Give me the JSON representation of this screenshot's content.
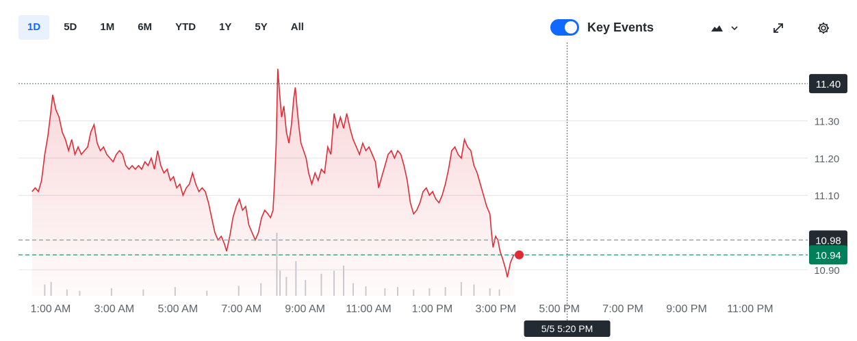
{
  "toolbar": {
    "ranges": [
      "1D",
      "5D",
      "1M",
      "6M",
      "YTD",
      "1Y",
      "5Y",
      "All"
    ],
    "active_range": "1D",
    "key_events_label": "Key Events",
    "key_events_enabled": true,
    "icons": [
      "mountain-chart-icon",
      "chevron-down-icon",
      "expand-icon",
      "gear-icon"
    ]
  },
  "colors": {
    "line": "#e02a35",
    "accent": "#0f69ff",
    "last_price": "#00805a",
    "previous_close": "#232a31",
    "badge_dark": "#232a31"
  },
  "chart_data": {
    "type": "area",
    "x_axis_ticks": [
      "1:00 AM",
      "3:00 AM",
      "5:00 AM",
      "7:00 AM",
      "9:00 AM",
      "11:00 AM",
      "1:00 PM",
      "3:00 PM",
      "5:00 PM",
      "7:00 PM",
      "9:00 PM",
      "11:00 PM"
    ],
    "y_axis_ticks": [
      11.3,
      11.2,
      11.1,
      10.9
    ],
    "ylim": [
      10.83,
      11.45
    ],
    "xlim_hours": [
      0.5,
      24.0
    ],
    "grid": true,
    "badges": {
      "high": "11.40",
      "previous_close": "10.98",
      "last": "10.94",
      "crosshair_time": "5/5 5:20 PM"
    },
    "crosshair_hour": 17.33,
    "series": [
      {
        "points": [
          [
            0.5,
            11.11
          ],
          [
            0.6,
            11.12
          ],
          [
            0.7,
            11.11
          ],
          [
            0.8,
            11.14
          ],
          [
            0.9,
            11.21
          ],
          [
            1.0,
            11.26
          ],
          [
            1.1,
            11.33
          ],
          [
            1.15,
            11.37
          ],
          [
            1.25,
            11.33
          ],
          [
            1.35,
            11.31
          ],
          [
            1.45,
            11.27
          ],
          [
            1.55,
            11.25
          ],
          [
            1.65,
            11.22
          ],
          [
            1.75,
            11.25
          ],
          [
            1.85,
            11.21
          ],
          [
            1.95,
            11.23
          ],
          [
            2.05,
            11.21
          ],
          [
            2.15,
            11.22
          ],
          [
            2.25,
            11.23
          ],
          [
            2.35,
            11.27
          ],
          [
            2.45,
            11.29
          ],
          [
            2.55,
            11.24
          ],
          [
            2.65,
            11.22
          ],
          [
            2.75,
            11.23
          ],
          [
            2.85,
            11.21
          ],
          [
            2.95,
            11.2
          ],
          [
            3.05,
            11.19
          ],
          [
            3.15,
            11.21
          ],
          [
            3.25,
            11.22
          ],
          [
            3.35,
            11.21
          ],
          [
            3.45,
            11.18
          ],
          [
            3.55,
            11.17
          ],
          [
            3.65,
            11.18
          ],
          [
            3.75,
            11.17
          ],
          [
            3.85,
            11.18
          ],
          [
            3.95,
            11.17
          ],
          [
            4.05,
            11.19
          ],
          [
            4.15,
            11.18
          ],
          [
            4.25,
            11.2
          ],
          [
            4.35,
            11.17
          ],
          [
            4.45,
            11.22
          ],
          [
            4.55,
            11.18
          ],
          [
            4.65,
            11.16
          ],
          [
            4.75,
            11.17
          ],
          [
            4.85,
            11.14
          ],
          [
            4.95,
            11.15
          ],
          [
            5.05,
            11.12
          ],
          [
            5.15,
            11.13
          ],
          [
            5.25,
            11.1
          ],
          [
            5.35,
            11.12
          ],
          [
            5.45,
            11.13
          ],
          [
            5.55,
            11.16
          ],
          [
            5.65,
            11.13
          ],
          [
            5.75,
            11.11
          ],
          [
            5.85,
            11.12
          ],
          [
            5.95,
            11.11
          ],
          [
            6.05,
            11.08
          ],
          [
            6.15,
            11.04
          ],
          [
            6.25,
            11.0
          ],
          [
            6.35,
            10.98
          ],
          [
            6.45,
            10.99
          ],
          [
            6.55,
            10.97
          ],
          [
            6.62,
            10.95
          ],
          [
            6.72,
            10.99
          ],
          [
            6.82,
            11.04
          ],
          [
            6.92,
            11.07
          ],
          [
            7.02,
            11.09
          ],
          [
            7.12,
            11.06
          ],
          [
            7.22,
            11.07
          ],
          [
            7.32,
            11.02
          ],
          [
            7.42,
            11.0
          ],
          [
            7.52,
            10.98
          ],
          [
            7.62,
            11.0
          ],
          [
            7.72,
            11.04
          ],
          [
            7.82,
            11.06
          ],
          [
            7.92,
            11.05
          ],
          [
            8.0,
            11.04
          ],
          [
            8.08,
            11.06
          ],
          [
            8.13,
            11.14
          ],
          [
            8.18,
            11.24
          ],
          [
            8.23,
            11.44
          ],
          [
            8.28,
            11.38
          ],
          [
            8.35,
            11.31
          ],
          [
            8.42,
            11.34
          ],
          [
            8.5,
            11.27
          ],
          [
            8.58,
            11.24
          ],
          [
            8.66,
            11.29
          ],
          [
            8.73,
            11.36
          ],
          [
            8.78,
            11.39
          ],
          [
            8.84,
            11.33
          ],
          [
            8.9,
            11.28
          ],
          [
            8.96,
            11.24
          ],
          [
            9.04,
            11.22
          ],
          [
            9.12,
            11.2
          ],
          [
            9.2,
            11.16
          ],
          [
            9.3,
            11.13
          ],
          [
            9.4,
            11.16
          ],
          [
            9.5,
            11.14
          ],
          [
            9.6,
            11.17
          ],
          [
            9.7,
            11.16
          ],
          [
            9.8,
            11.23
          ],
          [
            9.9,
            11.21
          ],
          [
            10.0,
            11.32
          ],
          [
            10.1,
            11.28
          ],
          [
            10.2,
            11.31
          ],
          [
            10.3,
            11.28
          ],
          [
            10.4,
            11.32
          ],
          [
            10.5,
            11.28
          ],
          [
            10.6,
            11.25
          ],
          [
            10.7,
            11.23
          ],
          [
            10.8,
            11.21
          ],
          [
            10.9,
            11.24
          ],
          [
            11.0,
            11.22
          ],
          [
            11.1,
            11.23
          ],
          [
            11.2,
            11.21
          ],
          [
            11.3,
            11.19
          ],
          [
            11.4,
            11.12
          ],
          [
            11.5,
            11.15
          ],
          [
            11.6,
            11.18
          ],
          [
            11.7,
            11.21
          ],
          [
            11.8,
            11.22
          ],
          [
            11.9,
            11.2
          ],
          [
            12.0,
            11.22
          ],
          [
            12.1,
            11.21
          ],
          [
            12.2,
            11.18
          ],
          [
            12.3,
            11.14
          ],
          [
            12.4,
            11.08
          ],
          [
            12.5,
            11.05
          ],
          [
            12.6,
            11.06
          ],
          [
            12.7,
            11.08
          ],
          [
            12.8,
            11.11
          ],
          [
            12.9,
            11.12
          ],
          [
            13.0,
            11.1
          ],
          [
            13.1,
            11.11
          ],
          [
            13.2,
            11.09
          ],
          [
            13.3,
            11.08
          ],
          [
            13.4,
            11.1
          ],
          [
            13.5,
            11.13
          ],
          [
            13.6,
            11.17
          ],
          [
            13.7,
            11.22
          ],
          [
            13.8,
            11.23
          ],
          [
            13.9,
            11.21
          ],
          [
            14.0,
            11.2
          ],
          [
            14.1,
            11.25
          ],
          [
            14.2,
            11.23
          ],
          [
            14.3,
            11.22
          ],
          [
            14.4,
            11.18
          ],
          [
            14.5,
            11.16
          ],
          [
            14.6,
            11.13
          ],
          [
            14.7,
            11.1
          ],
          [
            14.8,
            11.07
          ],
          [
            14.9,
            11.05
          ],
          [
            14.95,
            11.0
          ],
          [
            15.0,
            10.96
          ],
          [
            15.08,
            10.99
          ],
          [
            15.15,
            10.98
          ],
          [
            15.22,
            10.95
          ],
          [
            15.3,
            10.93
          ],
          [
            15.4,
            10.9
          ],
          [
            15.45,
            10.88
          ],
          [
            15.55,
            10.92
          ],
          [
            15.65,
            10.94
          ]
        ]
      }
    ],
    "volume": [
      [
        0.9,
        0.18
      ],
      [
        1.1,
        0.22
      ],
      [
        1.6,
        0.1
      ],
      [
        2.0,
        0.08
      ],
      [
        3.0,
        0.12
      ],
      [
        4.0,
        0.1
      ],
      [
        5.0,
        0.14
      ],
      [
        6.0,
        0.08
      ],
      [
        7.0,
        0.16
      ],
      [
        7.7,
        0.2
      ],
      [
        8.2,
        1.0
      ],
      [
        8.3,
        0.4
      ],
      [
        8.5,
        0.3
      ],
      [
        8.8,
        0.55
      ],
      [
        9.1,
        0.25
      ],
      [
        9.6,
        0.35
      ],
      [
        10.0,
        0.4
      ],
      [
        10.3,
        0.48
      ],
      [
        10.6,
        0.2
      ],
      [
        11.0,
        0.15
      ],
      [
        11.6,
        0.12
      ],
      [
        12.0,
        0.14
      ],
      [
        12.5,
        0.1
      ],
      [
        13.0,
        0.12
      ],
      [
        13.5,
        0.14
      ],
      [
        14.0,
        0.22
      ],
      [
        14.4,
        0.18
      ],
      [
        14.9,
        0.12
      ],
      [
        15.2,
        0.1
      ]
    ]
  }
}
